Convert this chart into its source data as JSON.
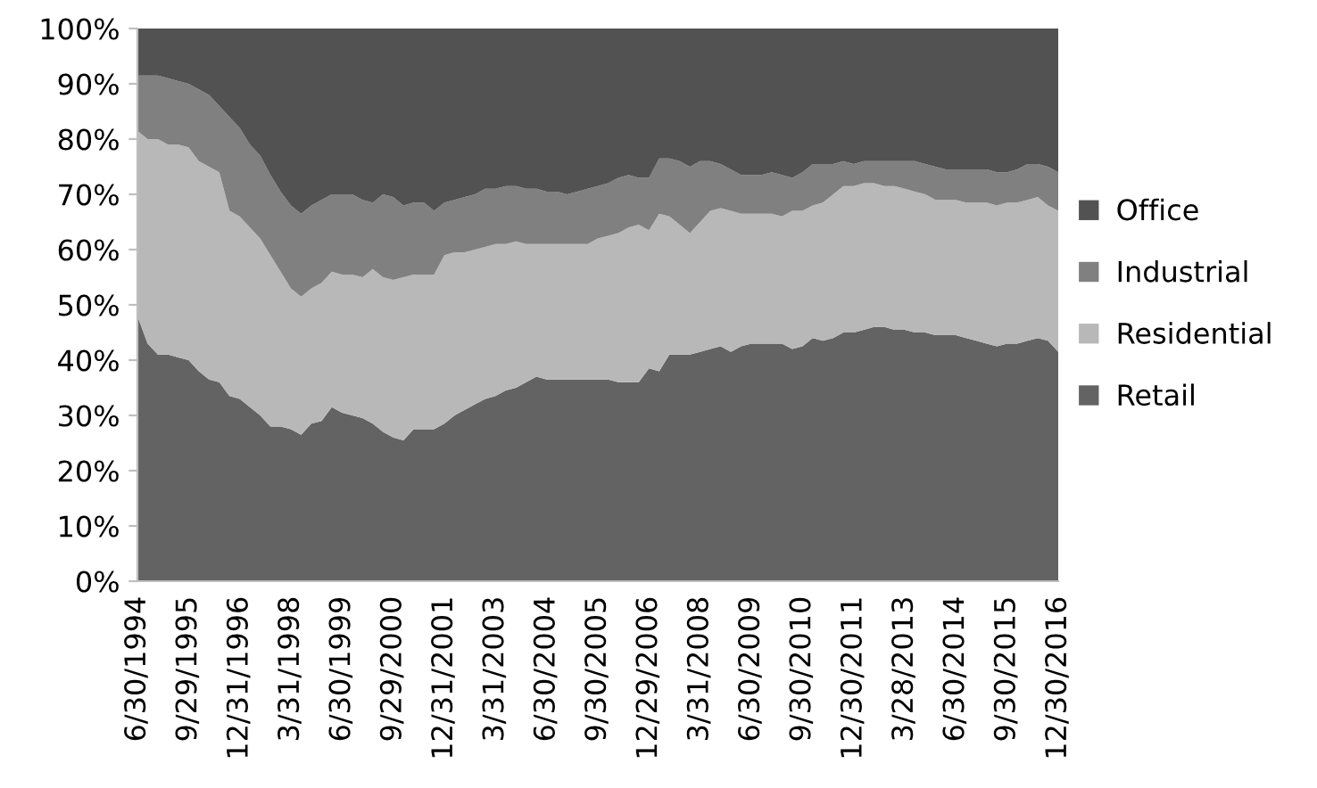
{
  "chart_data": {
    "type": "area",
    "stacked": true,
    "legend": "right",
    "categories": [
      "6/30/1994",
      null,
      null,
      null,
      null,
      "9/29/1995",
      null,
      null,
      null,
      null,
      "12/31/1996",
      null,
      null,
      null,
      null,
      "3/31/1998",
      null,
      null,
      null,
      null,
      "6/30/1999",
      null,
      null,
      null,
      null,
      "9/29/2000",
      null,
      null,
      null,
      null,
      "12/31/2001",
      null,
      null,
      null,
      null,
      "3/31/2003",
      null,
      null,
      null,
      null,
      "6/30/2004",
      null,
      null,
      null,
      null,
      "9/30/2005",
      null,
      null,
      null,
      null,
      "12/29/2006",
      null,
      null,
      null,
      null,
      "3/31/2008",
      null,
      null,
      null,
      null,
      "6/30/2009",
      null,
      null,
      null,
      null,
      "9/30/2010",
      null,
      null,
      null,
      null,
      "12/30/2011",
      null,
      null,
      null,
      null,
      "3/28/2013",
      null,
      null,
      null,
      null,
      "6/30/2014",
      null,
      null,
      null,
      null,
      "9/30/2015",
      null,
      null,
      null,
      null,
      "12/30/2016"
    ],
    "ylim": [
      0,
      100
    ],
    "yticks": [
      {
        "value": 0,
        "label": "0%"
      },
      {
        "value": 10,
        "label": "10%"
      },
      {
        "value": 20,
        "label": "20%"
      },
      {
        "value": 30,
        "label": "30%"
      },
      {
        "value": 40,
        "label": "40%"
      },
      {
        "value": 50,
        "label": "50%"
      },
      {
        "value": 60,
        "label": "60%"
      },
      {
        "value": 70,
        "label": "70%"
      },
      {
        "value": 80,
        "label": "80%"
      },
      {
        "value": 90,
        "label": "90%"
      },
      {
        "value": 100,
        "label": "100%"
      }
    ],
    "series": [
      {
        "name": "Retail",
        "color": "#636363",
        "values": [
          48,
          43,
          41,
          41,
          40.5,
          40,
          38,
          36.5,
          36,
          33.5,
          33,
          31.5,
          30,
          28,
          28,
          27.5,
          26.5,
          28.5,
          29,
          31.5,
          30.5,
          30,
          29.5,
          28.5,
          27,
          26,
          25.5,
          27.5,
          27.5,
          27.5,
          28.5,
          30,
          31,
          32,
          33,
          33.5,
          34.5,
          35,
          36,
          37,
          36.5,
          36.5,
          36.5,
          36.5,
          36.5,
          36.5,
          36.5,
          36,
          36,
          36,
          38.5,
          38,
          41,
          41,
          41,
          41.5,
          42,
          42.5,
          41.5,
          42.5,
          43,
          43,
          43,
          43,
          42,
          42.5,
          44,
          43.5,
          44,
          45,
          45,
          45.5,
          46,
          46,
          45.5,
          45.5,
          45,
          45,
          44.5,
          44.5,
          44.5,
          44,
          43.5,
          43,
          42.5,
          43,
          43,
          43.5,
          44,
          43.5,
          41.5
        ]
      },
      {
        "name": "Residential",
        "color": "#b8b8b8",
        "values": [
          33.5,
          37,
          39,
          38,
          38.5,
          38.5,
          38,
          38.5,
          38,
          33.5,
          33,
          32.5,
          32,
          31,
          28,
          25.5,
          25,
          24.5,
          25,
          24.5,
          25,
          25.5,
          25.5,
          28,
          28,
          28.5,
          29.5,
          28,
          28,
          28,
          30.5,
          29.5,
          28.5,
          28,
          27.5,
          27.5,
          26.5,
          26.5,
          25,
          24,
          24.5,
          24.5,
          24.5,
          24.5,
          24.5,
          25.5,
          26,
          27,
          28,
          28.5,
          25,
          28.5,
          25,
          23.5,
          22,
          23.5,
          25,
          25,
          25.5,
          24,
          23.5,
          23.5,
          23.5,
          23,
          25,
          24.5,
          24,
          25,
          26,
          26.5,
          26.5,
          26.5,
          26,
          25.5,
          26,
          25.5,
          25.5,
          25,
          24.5,
          24.5,
          24.5,
          24.5,
          25,
          25.5,
          25.5,
          25.5,
          25.5,
          25.5,
          25.5,
          24.5,
          25.5
        ]
      },
      {
        "name": "Industrial",
        "color": "#808080",
        "values": [
          10,
          11.5,
          11.5,
          12,
          11.5,
          11.5,
          13,
          13,
          12,
          17,
          16,
          15,
          15,
          14.5,
          14.5,
          15,
          15,
          15,
          15,
          14,
          14.5,
          14.5,
          14,
          12,
          15,
          15,
          13,
          13,
          13,
          11.5,
          9.5,
          9.5,
          10,
          10,
          10.5,
          10,
          10.5,
          10,
          10,
          10,
          9.5,
          9.5,
          9,
          9.5,
          10,
          9.5,
          9.5,
          10,
          9.5,
          8.5,
          9.5,
          10,
          10.5,
          11.5,
          12,
          11,
          9,
          8,
          7.5,
          7,
          7,
          7,
          7.5,
          7.5,
          6,
          7,
          7.5,
          7,
          5.5,
          4.5,
          4,
          4,
          4,
          4.5,
          4.5,
          5,
          5.5,
          5.5,
          6,
          5.5,
          5.5,
          6,
          6,
          6,
          6,
          5.5,
          6,
          6.5,
          6,
          7,
          7
        ]
      },
      {
        "name": "Office",
        "color": "#525252",
        "values": [
          8.5,
          8.5,
          8.5,
          9,
          9.5,
          10,
          11,
          12,
          14,
          16,
          18,
          21,
          23,
          26.5,
          29.5,
          32,
          33.5,
          32,
          31,
          30,
          30,
          30,
          31,
          31.5,
          30,
          30.5,
          32,
          31.5,
          31.5,
          33,
          31.5,
          31,
          30.5,
          30,
          29,
          29,
          28.5,
          28.5,
          29,
          29,
          29.5,
          29.5,
          30,
          29.5,
          29,
          28.5,
          28,
          27,
          26.5,
          27,
          27,
          23.5,
          23.5,
          24,
          25,
          24,
          24,
          24.5,
          25.5,
          26.5,
          26.5,
          26.5,
          26,
          26.5,
          27,
          26,
          24.5,
          24.5,
          24.5,
          24,
          24.5,
          24,
          24,
          24,
          24,
          24,
          24,
          24.5,
          25,
          25.5,
          25.5,
          25.5,
          25.5,
          25.5,
          26,
          26,
          25.5,
          24.5,
          24.5,
          25,
          26
        ]
      }
    ]
  }
}
